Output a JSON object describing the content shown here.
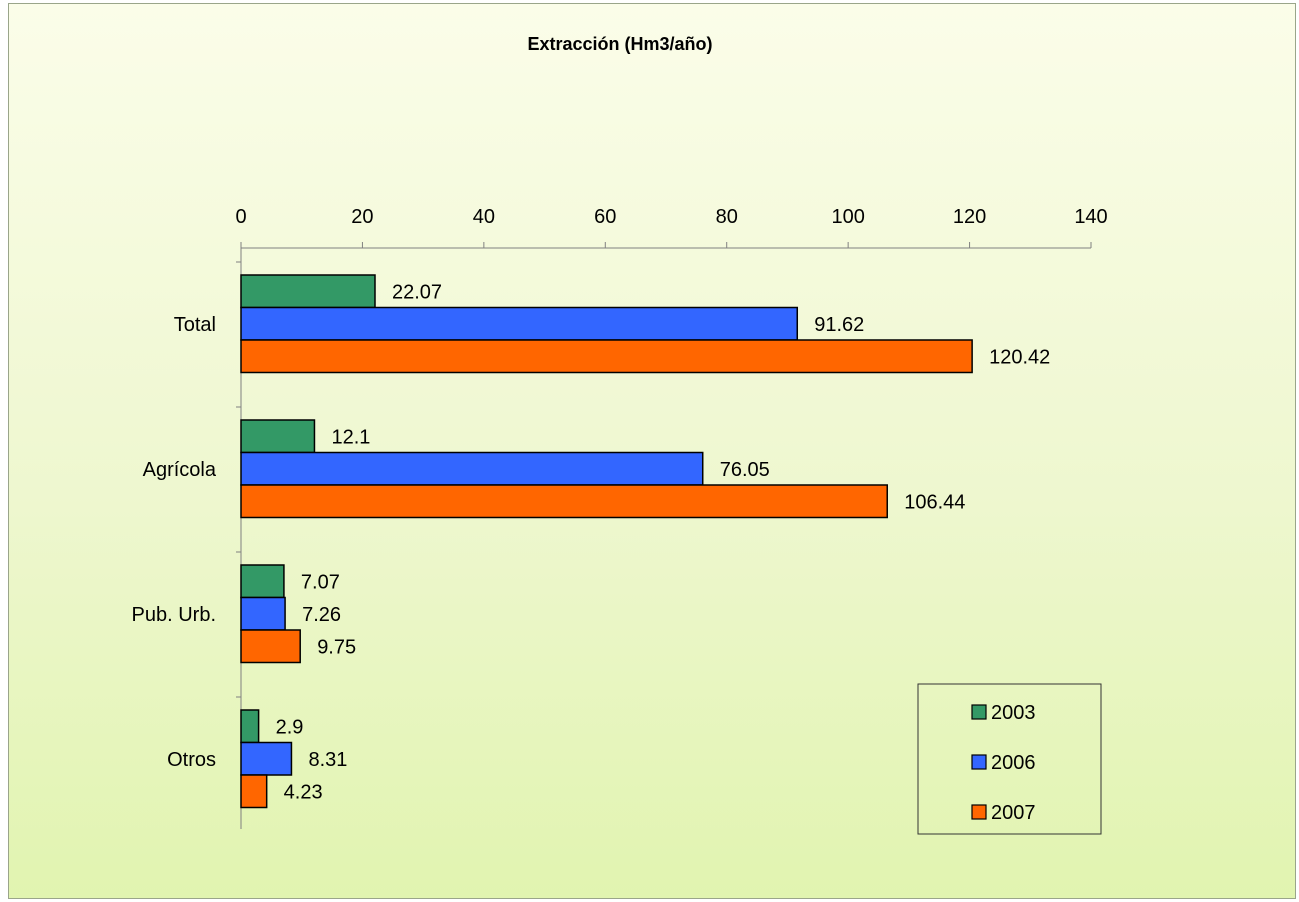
{
  "chart_data": {
    "type": "bar",
    "orientation": "horizontal",
    "title": "Extracción (Hm3/año)",
    "categories": [
      "Total",
      "Agrícola",
      "Pub. Urb.",
      "Otros"
    ],
    "series": [
      {
        "name": "2003",
        "color": "#339966",
        "values": [
          22.07,
          12.1,
          7.07,
          2.9
        ]
      },
      {
        "name": "2006",
        "color": "#3366ff",
        "values": [
          91.62,
          76.05,
          7.26,
          8.31
        ]
      },
      {
        "name": "2007",
        "color": "#ff6600",
        "values": [
          120.42,
          106.44,
          9.75,
          4.23
        ]
      }
    ],
    "xlim": [
      0,
      140
    ],
    "xticks": [
      "0",
      "20",
      "40",
      "60",
      "80",
      "100",
      "120",
      "140"
    ],
    "x_axis_position": "top",
    "grid": false,
    "legend_position": "bottom-right",
    "data_labels": [
      [
        "22.07",
        "91.62",
        "120.42"
      ],
      [
        "12.1",
        "76.05",
        "106.44"
      ],
      [
        "7.07",
        "7.26",
        "9.75"
      ],
      [
        "2.9",
        "8.31",
        "4.23"
      ]
    ]
  }
}
